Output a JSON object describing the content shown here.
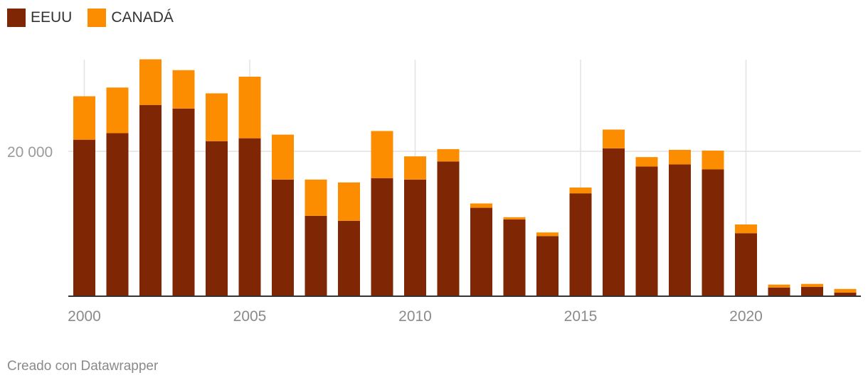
{
  "legend": {
    "items": [
      {
        "label": "EEUU",
        "color": "#7f2704"
      },
      {
        "label": "CANADÁ",
        "color": "#fd8d00"
      }
    ]
  },
  "footer": {
    "credit": "Creado con Datawrapper"
  },
  "chart_data": {
    "type": "bar",
    "stacked": true,
    "x": [
      2000,
      2001,
      2002,
      2003,
      2004,
      2005,
      2006,
      2007,
      2008,
      2009,
      2010,
      2011,
      2012,
      2013,
      2014,
      2015,
      2016,
      2017,
      2018,
      2019,
      2020,
      2021,
      2022,
      2023
    ],
    "series": [
      {
        "name": "EEUU",
        "color": "#7f2704",
        "values": [
          21600,
          22500,
          26400,
          25900,
          21400,
          21800,
          16100,
          11100,
          10400,
          16300,
          16100,
          18600,
          12200,
          10600,
          8300,
          14200,
          20400,
          17900,
          18200,
          17500,
          8700,
          1200,
          1300,
          500
        ]
      },
      {
        "name": "CANADÁ",
        "color": "#fd8d00",
        "values": [
          6000,
          6300,
          6300,
          5300,
          6600,
          8500,
          6200,
          5000,
          5300,
          6500,
          3200,
          1700,
          600,
          300,
          500,
          800,
          2600,
          1300,
          2000,
          2600,
          1200,
          400,
          400,
          500
        ]
      }
    ],
    "y_ticks": [
      {
        "value": 20000,
        "label": "20 000"
      }
    ],
    "x_ticks": [
      {
        "value": 2000,
        "label": "2000"
      },
      {
        "value": 2005,
        "label": "2005"
      },
      {
        "value": 2010,
        "label": "2010"
      },
      {
        "value": 2015,
        "label": "2015"
      },
      {
        "value": 2020,
        "label": "2020"
      }
    ],
    "ylim": [
      0,
      33000
    ],
    "grid": true,
    "legend_position": "top-left",
    "title": "",
    "xlabel": "",
    "ylabel": ""
  }
}
